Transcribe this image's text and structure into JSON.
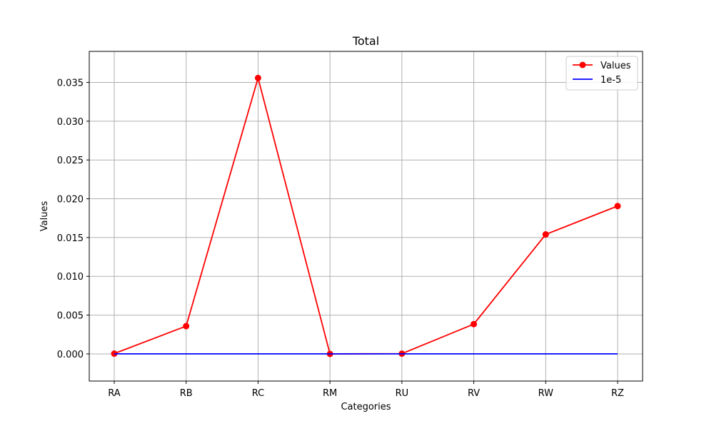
{
  "chart_data": {
    "type": "line",
    "title": "Total",
    "xlabel": "Categories",
    "ylabel": "Values",
    "categories": [
      "RA",
      "RB",
      "RC",
      "RM",
      "RU",
      "RV",
      "RW",
      "RZ"
    ],
    "series": [
      {
        "name": "Values",
        "color": "#ff0000",
        "marker": "circle",
        "values": [
          4e-05,
          0.00358,
          0.03557,
          0.0,
          3e-05,
          0.00384,
          0.0154,
          0.01906
        ]
      },
      {
        "name": "1e-5",
        "color": "#0000ff",
        "marker": "none",
        "values": [
          1e-05,
          1e-05,
          1e-05,
          1e-05,
          1e-05,
          1e-05,
          1e-05,
          1e-05
        ]
      }
    ],
    "ylim": [
      -0.0035,
      0.039
    ],
    "yticks": [
      0.0,
      0.005,
      0.01,
      0.015,
      0.02,
      0.025,
      0.03,
      0.035
    ],
    "ytick_labels": [
      "0.000",
      "0.005",
      "0.010",
      "0.015",
      "0.020",
      "0.025",
      "0.030",
      "0.035"
    ],
    "grid": true,
    "legend_position": "top-right"
  }
}
